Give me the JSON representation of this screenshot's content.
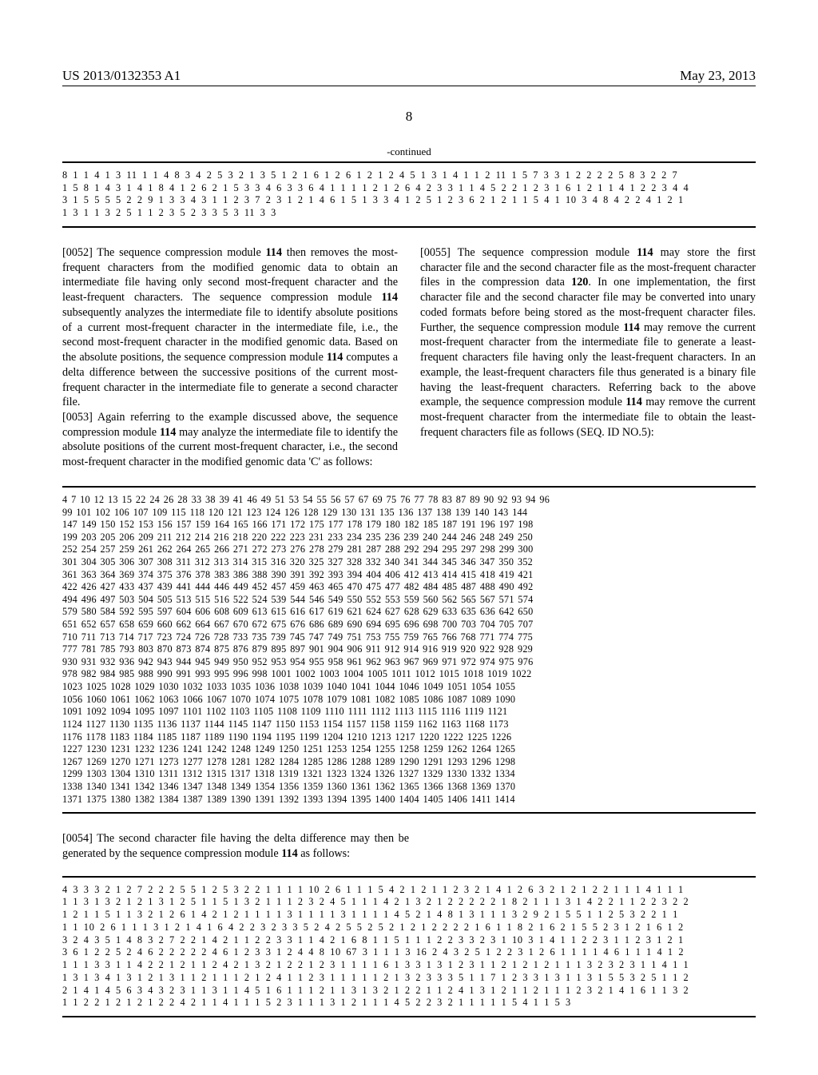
{
  "header": {
    "left": "US 2013/0132353 A1",
    "right": "May 23, 2013"
  },
  "page_number": "8",
  "continued_label": "-continued",
  "block1": {
    "lines": [
      "8 1 1 4 1 3 11 1 1 4 8 3 4 2 5 3 2 1 3 5 1 2 1 6 1 2 6 1 2 1 2 4 5 1 3 1 4 1 1 2 11 1 5 7 3 3 1 2 2 2 2 5 8 3 2 2 7",
      "1 5 8 1 4 3 1 4 1 8 4 1 2 6 2 1 5 3 3 4 6 3 3 6 4 1 1 1 1 2 1 2 6 4 2 3 3 1 1 4 5 2 2 1 2 3 1 6 1 2 1 1 4 1 2 2 3 4 4",
      "3 1 5 5 5 5 2 2 9 1 3 3 4 3 1 1 2 3 7 2 3 1 2 1 4 6 1 5 1 3 3 4 1 2 5 1 2 3 6 2 1 2 1 1 5 4 1 10 3 4 8 4 2 2 4 1 2 1",
      "1 3 1 1 3 2 5 1 1 2 3 5 2 3 3 5 3 11 3 3"
    ]
  },
  "para52": {
    "num": "[0052]",
    "text": "    The sequence compression module ",
    "bold": "114",
    "text2": " then removes the most-frequent characters from the modified genomic data to obtain an intermediate file having only second most-frequent character and the least-frequent characters. The sequence compression module ",
    "bold2": "114",
    "text3": " subsequently analyzes the intermediate file to identify absolute positions of a current most-frequent character in the intermediate file, i.e., the second most-frequent character in the modified genomic data. Based on the absolute positions, the sequence compression module ",
    "bold3": "114",
    "text4": " computes a delta difference between the successive positions of the current most-frequent character in the intermediate file to generate a second character file."
  },
  "para53": {
    "num": "[0053]",
    "text": "    Again referring to the example discussed above, the sequence compression module ",
    "bold": "114",
    "text2": " may analyze the intermediate file to identify the absolute positions of the current most-frequent character, i.e., the second most-frequent character in the modified genomic data 'C' as follows:"
  },
  "para55": {
    "num": "[0055]",
    "text": "    The sequence compression module ",
    "bold": "114",
    "text2": " may store the first character file and the second character file as the most-frequent character files in the compression data ",
    "bold2": "120",
    "text3": ". In one implementation, the first character file and the second character file may be converted into unary coded formats before being stored as the most-frequent character files. Further, the sequence compression module ",
    "bold3": "114",
    "text4": " may remove the current most-frequent character from the intermediate file to generate a least-frequent characters file having only the least-frequent characters. In an example, the least-frequent characters file thus generated is a binary file having the least-frequent characters. Referring back to the above example, the sequence compression module ",
    "bold4": "114",
    "text5": " may remove the current most-frequent character from the intermediate file to obtain the least-frequent characters file as follows (SEQ. ID NO.5):"
  },
  "block2": {
    "lines": [
      "4 7 10 12 13 15 22 24 26 28 33 38 39 41 46 49 51 53 54 55 56 57 67 69 75 76 77 78 83 87 89 90 92 93 94 96",
      "99 101 102 106 107 109 115 118 120 121 123 124 126 128 129 130 131 135 136 137 138 139 140 143 144",
      "147 149 150 152 153 156 157 159 164 165 166 171 172 175 177 178 179 180 182 185 187 191 196 197 198",
      "199 203 205 206 209 211 212 214 216 218 220 222 223 231 233 234 235 236 239 240 244 246 248 249 250",
      "252 254 257 259 261 262 264 265 266 271 272 273 276 278 279 281 287 288 292 294 295 297 298 299 300",
      "301 304 305 306 307 308 311 312 313 314 315 316 320 325 327 328 332 340 341 344 345 346 347 350 352",
      "361 363 364 369 374 375 376 378 383 386 388 390 391 392 393 394 404 406 412 413 414 415 418 419 421",
      "422 426 427 433 437 439 441 444 446 449 452 457 459 463 465 470 475 477 482 484 485 487 488 490 492",
      "494 496 497 503 504 505 513 515 516 522 524 539 544 546 549 550 552 553 559 560 562 565 567 571 574",
      "579 580 584 592 595 597 604 606 608 609 613 615 616 617 619 621 624 627 628 629 633 635 636 642 650",
      "651 652 657 658 659 660 662 664 667 670 672 675 676 686 689 690 694 695 696 698 700 703 704 705 707",
      "710 711 713 714 717 723 724 726 728 733 735 739 745 747 749 751 753 755 759 765 766 768 771 774 775",
      "777 781 785 793 803 870 873 874 875 876 879 895 897 901 904 906 911 912 914 916 919 920 922 928 929",
      "930 931 932 936 942 943 944 945 949 950 952 953 954 955 958 961 962 963 967 969 971 972 974 975 976",
      "978 982 984 985 988 990 991 993 995 996 998 1001 1002 1003 1004 1005 1011 1012 1015 1018 1019 1022",
      "1023 1025 1028 1029 1030 1032 1033 1035 1036 1038 1039 1040 1041 1044 1046 1049 1051 1054 1055",
      "1056 1060 1061 1062 1063 1066 1067 1070 1074 1075 1078 1079 1081 1082 1085 1086 1087 1089 1090",
      "1091 1092 1094 1095 1097 1101 1102 1103 1105 1108 1109 1110 1111 1112 1113 1115 1116 1119 1121",
      "1124 1127 1130 1135 1136 1137 1144 1145 1147 1150 1153 1154 1157 1158 1159 1162 1163 1168 1173",
      "1176 1178 1183 1184 1185 1187 1189 1190 1194 1195 1199 1204 1210 1213 1217 1220 1222 1225 1226",
      "1227 1230 1231 1232 1236 1241 1242 1248 1249 1250 1251 1253 1254 1255 1258 1259 1262 1264 1265",
      "1267 1269 1270 1271 1273 1277 1278 1281 1282 1284 1285 1286 1288 1289 1290 1291 1293 1296 1298",
      "1299 1303 1304 1310 1311 1312 1315 1317 1318 1319 1321 1323 1324 1326 1327 1329 1330 1332 1334",
      "1338 1340 1341 1342 1346 1347 1348 1349 1354 1356 1359 1360 1361 1362 1365 1366 1368 1369 1370",
      "1371 1375 1380 1382 1384 1387 1389 1390 1391 1392 1393 1394 1395 1400 1404 1405 1406 1411 1414"
    ]
  },
  "para54": {
    "num": "[0054]",
    "text": "    The second character file having the delta difference may then be generated by the sequence compression module ",
    "bold": "114",
    "text2": " as follows:"
  },
  "block3": {
    "lines": [
      "4 3 3 3 2 1 2 7 2 2 2 5 5 1 2 5 3 2 2 1 1 1 1 10 2 6 1 1 1 5 4 2 1 2 1 1 2 3 2 1 4 1 2 6 3 2 1 2 1 2 2 1 1 1 4 1 1 1",
      "1 1 3 1 3 2 1 2 1 3 1 2 5 1 1 5 1 3 2 1 1 1 2 3 2 4 5 1 1 1 4 2 1 3 2 1 2 2 2 2 2 1 8 2 1 1 1 3 1 4 2 2 1 1 2 2 3 2 2",
      "1 2 1 1 5 1 1 3 2 1 2 6 1 4 2 1 2 1 1 1 1 3 1 1 1 1 3 1 1 1 1 4 5 2 1 4 8 1 3 1 1 1 3 2 9 2 1 5 5 1 1 2 5 3 2 2 1 1",
      "1 1 10 2 6 1 1 1 3 1 2 1 4 1 6 4 2 2 3 2 3 3 5 2 4 2 5 5 2 5 2 1 2 1 2 2 2 2 1 6 1 1 8 2 1 6 2 1 5 5 2 3 1 2 1 6 1 2",
      "3 2 4 3 5 1 4 8 3 2 7 2 2 1 4 2 1 1 2 2 3 3 1 1 4 2 1 6 8 1 1 5 1 1 1 2 2 3 3 2 3 1 10 3 1 4 1 1 2 2 3 1 1 2 3 1 2 1",
      "3 6 1 2 2 5 2 4 6 2 2 2 2 2 4 6 1 2 3 3 1 2 4 4 8 10 67 3 1 1 1 3 16 2 4 3 2 5 1 2 2 3 1 2 6 1 1 1 1 4 6 1 1 1 4 1 2",
      "1 1 1 3 3 1 1 4 2 2 1 2 1 1 2 4 2 1 3 2 1 2 2 1 2 3 1 1 1 1 6 1 3 3 1 3 1 2 3 1 1 2 1 2 1 2 1 1 1 3 2 3 2 3 1 1 4 1 1",
      "1 3 1 3 4 1 3 1 2 1 3 1 1 2 1 1 1 2 1 2 4 1 1 2 3 1 1 1 1 1 2 1 3 2 3 3 3 5 1 1 7 1 2 3 3 1 3 1 1 3 1 5 5 3 2 5 1 1 2",
      "2 1 4 1 4 5 6 3 4 3 2 3 1 1 3 1 1 4 5 1 6 1 1 1 2 1 1 3 1 3 2 1 2 2 1 1 2 4 1 3 1 2 1 1 2 1 1 1 2 3 2 1 4 1 6 1 1 3 2",
      "1 1 2 2 1 2 1 2 1 2 2 4 2 1 1 4 1 1 1 5 2 3 1 1 1 3 1 2 1 1 1 4 5 2 2 3 2 1 1 1 1 1 5 4 1 1 5 3"
    ]
  }
}
